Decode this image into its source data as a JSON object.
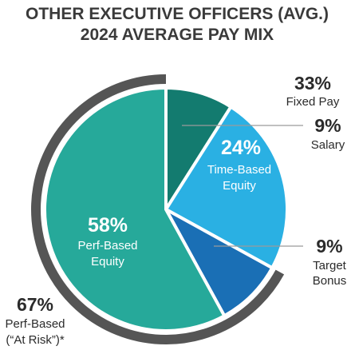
{
  "title": {
    "line1": "OTHER EXECUTIVE OFFICERS (AVG.)",
    "line2": "2024 AVERAGE PAY MIX"
  },
  "chart_data": {
    "type": "pie",
    "title": "OTHER EXECUTIVE OFFICERS (AVG.) 2024 AVERAGE PAY MIX",
    "slices": [
      {
        "label": "Salary",
        "value": 9,
        "color": "#137b6f"
      },
      {
        "label": "Time-Based Equity",
        "value": 24,
        "color": "#2ab0e3"
      },
      {
        "label": "Target Bonus",
        "value": 9,
        "color": "#1a6fb5"
      },
      {
        "label": "Perf-Based Equity",
        "value": 58,
        "color": "#26a99a"
      }
    ],
    "groups": [
      {
        "label": "Fixed Pay",
        "value": 33
      },
      {
        "label": "Perf-Based (“At Risk”)*",
        "value": 67
      }
    ]
  },
  "labels": {
    "fixed_pct": "33%",
    "fixed_label": "Fixed Pay",
    "salary_pct": "9%",
    "salary_label": "Salary",
    "target_pct": "9%",
    "target_label_1": "Target",
    "target_label_2": "Bonus",
    "time_pct": "24%",
    "time_label_1": "Time-Based",
    "time_label_2": "Equity",
    "perf_pct": "58%",
    "perf_label_1": "Perf-Based",
    "perf_label_2": "Equity",
    "risk_pct": "67%",
    "risk_label_1": "Perf-Based",
    "risk_label_2": "(“At Risk”)*"
  },
  "colors": {
    "ring": "#555555",
    "leader": "#8a8a8a",
    "text": "#2b2b2b"
  }
}
